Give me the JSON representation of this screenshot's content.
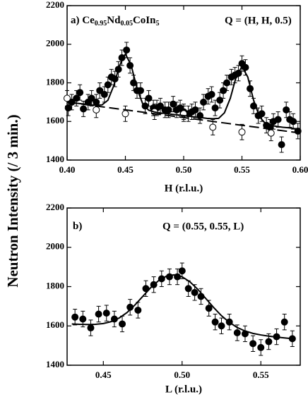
{
  "chart_data": [
    {
      "type": "scatter",
      "ylabel": "Neutron Intensity (/ 3 min.)",
      "title": [
        {
          "text": "a) Ce"
        },
        {
          "text": "0.95",
          "sub": true
        },
        {
          "text": "Nd"
        },
        {
          "text": "0.05",
          "sub": true
        },
        {
          "text": "CoIn"
        },
        {
          "text": "5",
          "sub": true
        }
      ],
      "annotation": "Q = (H, H, 0.5)",
      "xlabel": "H (r.l.u.)",
      "xlim": [
        0.4,
        0.6
      ],
      "ylim": [
        1400,
        2200
      ],
      "xticks": [
        {
          "value": 0.4,
          "label": "0.40"
        },
        0.45,
        {
          "value": 0.5,
          "label": "0.50"
        },
        0.55,
        {
          "value": 0.6,
          "label": "0.60"
        }
      ],
      "yticks": [
        1400,
        1600,
        1800,
        2000,
        2200
      ],
      "series": [
        {
          "style": "filled",
          "color": "#000000",
          "error": 40,
          "x": [
            0.401,
            0.404,
            0.408,
            0.411,
            0.414,
            0.418,
            0.421,
            0.425,
            0.428,
            0.432,
            0.435,
            0.438,
            0.441,
            0.444,
            0.447,
            0.451,
            0.454,
            0.457,
            0.46,
            0.463,
            0.467,
            0.47,
            0.474,
            0.477,
            0.48,
            0.484,
            0.487,
            0.491,
            0.494,
            0.497,
            0.5,
            0.504,
            0.507,
            0.51,
            0.514,
            0.517,
            0.521,
            0.524,
            0.527,
            0.531,
            0.534,
            0.537,
            0.541,
            0.544,
            0.547,
            0.55,
            0.553,
            0.557,
            0.56,
            0.564,
            0.567,
            0.571,
            0.574,
            0.577,
            0.581,
            0.584,
            0.588,
            0.591,
            0.594,
            0.598
          ],
          "values": [
            1670,
            1700,
            1720,
            1750,
            1665,
            1700,
            1720,
            1700,
            1760,
            1740,
            1790,
            1830,
            1820,
            1870,
            1930,
            1970,
            1890,
            1800,
            1760,
            1760,
            1680,
            1720,
            1670,
            1670,
            1680,
            1660,
            1660,
            1690,
            1660,
            1670,
            1650,
            1640,
            1650,
            1660,
            1630,
            1700,
            1730,
            1740,
            1670,
            1710,
            1760,
            1800,
            1830,
            1840,
            1850,
            1900,
            1880,
            1770,
            1680,
            1630,
            1640,
            1580,
            1570,
            1600,
            1610,
            1480,
            1660,
            1610,
            1600,
            1550
          ]
        },
        {
          "style": "open",
          "color": "#000000",
          "error": 40,
          "x": [
            0.4,
            0.425,
            0.45,
            0.475,
            0.5,
            0.525,
            0.55,
            0.575
          ],
          "values": [
            1720,
            1660,
            1640,
            1650,
            1640,
            1570,
            1545,
            1540
          ]
        },
        {
          "style": "line",
          "color": "#000000",
          "x": [
            0.4,
            0.405,
            0.41,
            0.415,
            0.42,
            0.425,
            0.43,
            0.435,
            0.44,
            0.445,
            0.45,
            0.455,
            0.46,
            0.465,
            0.47,
            0.475,
            0.48,
            0.485,
            0.49,
            0.495,
            0.5,
            0.505,
            0.51,
            0.515,
            0.52,
            0.525,
            0.53,
            0.535,
            0.54,
            0.545,
            0.55,
            0.555,
            0.56,
            0.565,
            0.57,
            0.575,
            0.58,
            0.585,
            0.59,
            0.595,
            0.6
          ],
          "values": [
            1700,
            1697,
            1693,
            1690,
            1686,
            1684,
            1686,
            1710,
            1785,
            1890,
            1950,
            1890,
            1770,
            1689,
            1658,
            1649,
            1644,
            1641,
            1637,
            1634,
            1630,
            1627,
            1623,
            1620,
            1616,
            1614,
            1616,
            1645,
            1720,
            1830,
            1885,
            1830,
            1710,
            1625,
            1590,
            1580,
            1574,
            1570,
            1567,
            1563,
            1560
          ]
        },
        {
          "style": "dashed",
          "color": "#000000",
          "x": [
            0.4,
            0.6
          ],
          "values": [
            1700,
            1540
          ]
        }
      ]
    },
    {
      "type": "scatter",
      "title": [
        {
          "text": "b)"
        }
      ],
      "annotation": "Q = (0.55, 0.55, L)",
      "xlabel": "L (r.l.u.)",
      "xlim": [
        0.427,
        0.575
      ],
      "ylim": [
        1400,
        2200
      ],
      "xticks": [
        0.45,
        {
          "value": 0.5,
          "label": "0.50"
        },
        0.55
      ],
      "yticks": [
        1400,
        1600,
        1800,
        2000,
        2200
      ],
      "series": [
        {
          "style": "filled",
          "color": "#000000",
          "error": 40,
          "x": [
            0.432,
            0.437,
            0.442,
            0.447,
            0.452,
            0.457,
            0.462,
            0.467,
            0.472,
            0.477,
            0.482,
            0.487,
            0.492,
            0.497,
            0.5,
            0.504,
            0.508,
            0.512,
            0.517,
            0.521,
            0.525,
            0.53,
            0.535,
            0.54,
            0.545,
            0.55,
            0.555,
            0.56,
            0.565,
            0.57
          ],
          "values": [
            1645,
            1635,
            1590,
            1660,
            1665,
            1635,
            1610,
            1695,
            1680,
            1790,
            1810,
            1840,
            1850,
            1850,
            1880,
            1790,
            1770,
            1750,
            1690,
            1620,
            1600,
            1620,
            1565,
            1560,
            1510,
            1490,
            1520,
            1545,
            1620,
            1535
          ]
        },
        {
          "style": "line",
          "color": "#000000",
          "x": [
            0.43,
            0.435,
            0.44,
            0.445,
            0.45,
            0.455,
            0.46,
            0.465,
            0.47,
            0.475,
            0.48,
            0.485,
            0.49,
            0.495,
            0.5,
            0.505,
            0.51,
            0.515,
            0.52,
            0.525,
            0.53,
            0.535,
            0.54,
            0.545,
            0.55,
            0.555,
            0.56,
            0.565,
            0.57
          ],
          "values": [
            1610,
            1608,
            1607,
            1608,
            1612,
            1622,
            1640,
            1668,
            1706,
            1750,
            1794,
            1830,
            1853,
            1860,
            1850,
            1824,
            1786,
            1740,
            1694,
            1652,
            1618,
            1592,
            1574,
            1562,
            1554,
            1548,
            1543,
            1539,
            1535
          ]
        }
      ]
    }
  ]
}
